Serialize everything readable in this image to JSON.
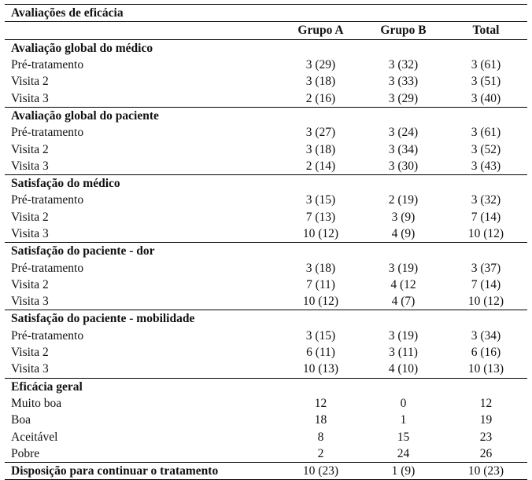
{
  "title": "Avaliações de eficácia",
  "columns": [
    "Grupo A",
    "Grupo B",
    "Total"
  ],
  "sections": [
    {
      "title": "Avaliação global do médico",
      "rows": [
        [
          "Pré-tratamento",
          "3 (29)",
          "3 (32)",
          "3 (61)"
        ],
        [
          "Visita 2",
          "3 (18)",
          "3 (33)",
          "3 (51)"
        ],
        [
          "Visita 3",
          "2 (16)",
          "3 (29)",
          "3 (40)"
        ]
      ]
    },
    {
      "title": "Avaliação global do paciente",
      "rows": [
        [
          "Pré-tratamento",
          "3 (27)",
          "3 (24)",
          "3 (61)"
        ],
        [
          "Visita 2",
          "3 (18)",
          "3 (34)",
          "3 (52)"
        ],
        [
          "Visita 3",
          "2 (14)",
          "3 (30)",
          "3 (43)"
        ]
      ]
    },
    {
      "title": "Satisfação do médico",
      "rows": [
        [
          "Pré-tratamento",
          "3 (15)",
          "2 (19)",
          "3 (32)"
        ],
        [
          "Visita 2",
          "7 (13)",
          "3 (9)",
          "7 (14)"
        ],
        [
          "Visita 3",
          "10 (12)",
          "4 (9)",
          "10 (12)"
        ]
      ]
    },
    {
      "title": "Satisfação do paciente - dor",
      "rows": [
        [
          "Pré-tratamento",
          "3 (18)",
          "3 (19)",
          "3 (37)"
        ],
        [
          "Visita 2",
          "7 (11)",
          "4 (12",
          "7 (14)"
        ],
        [
          "Visita 3",
          "10 (12)",
          "4 (7)",
          "10 (12)"
        ]
      ]
    },
    {
      "title": "Satisfação do paciente - mobilidade",
      "rows": [
        [
          "Pré-tratamento",
          "3 (15)",
          "3 (19)",
          "3 (34)"
        ],
        [
          "Visita 2",
          "6 (11)",
          "3 (11)",
          "6 (16)"
        ],
        [
          "Visita 3",
          "10 (13)",
          "4 (10)",
          "10 (13)"
        ]
      ]
    },
    {
      "title": "Eficácia geral",
      "rows": [
        [
          "Muito boa",
          "12",
          "0",
          "12"
        ],
        [
          "Boa",
          "18",
          "1",
          "19"
        ],
        [
          "Aceitável",
          "8",
          "15",
          "23"
        ],
        [
          "Pobre",
          "2",
          "24",
          "26"
        ]
      ]
    }
  ],
  "final": [
    "Disposição para continuar o tratamento",
    "10 (23)",
    "1 (9)",
    "10 (23)"
  ]
}
